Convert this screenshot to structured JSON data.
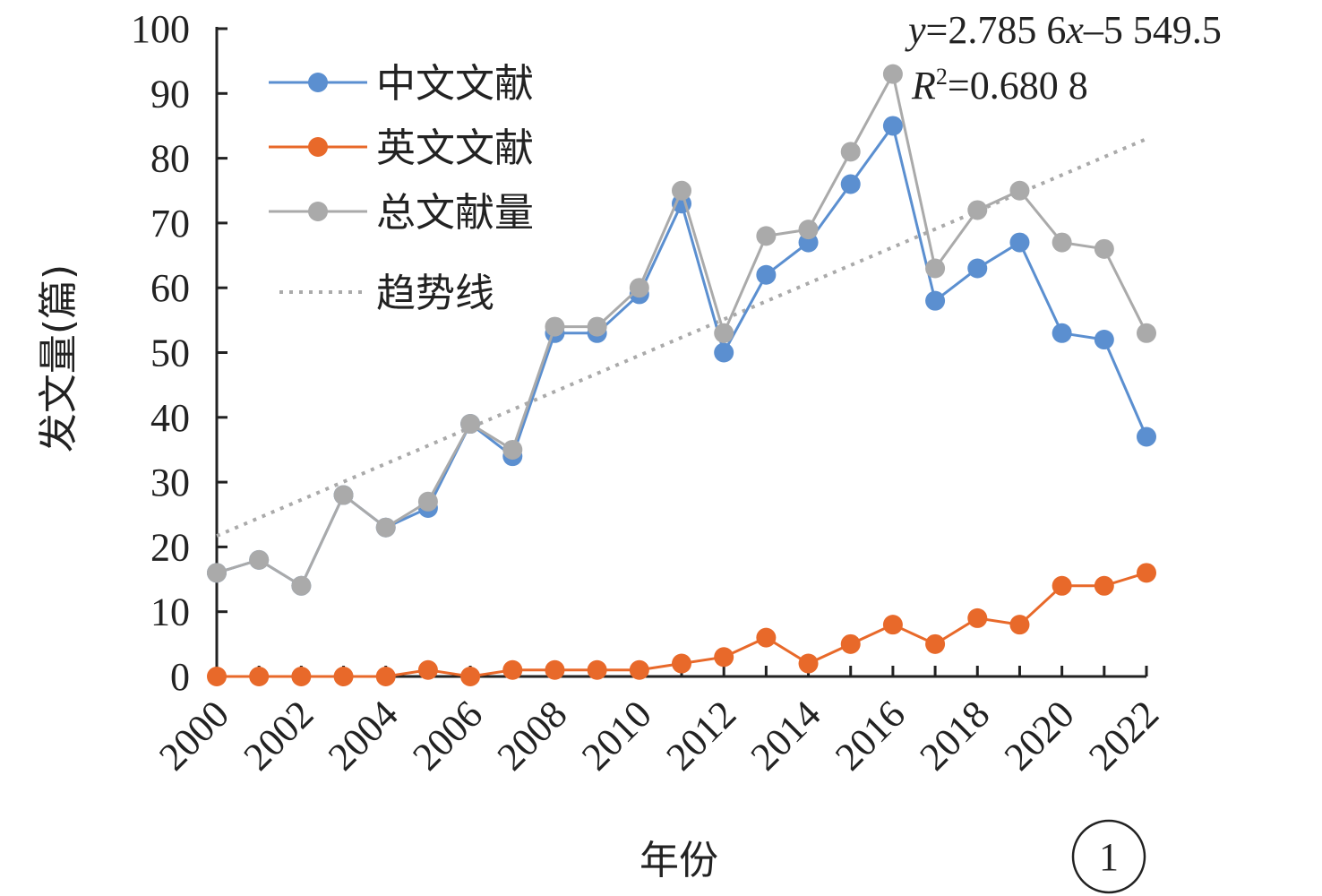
{
  "chart_data": {
    "type": "line",
    "xlabel": "年份",
    "ylabel": "发文量(篇)",
    "x": [
      2000,
      2001,
      2002,
      2003,
      2004,
      2005,
      2006,
      2007,
      2008,
      2009,
      2010,
      2011,
      2012,
      2013,
      2014,
      2015,
      2016,
      2017,
      2018,
      2019,
      2020,
      2021,
      2022
    ],
    "x_tick_labels": [
      "2000",
      "2002",
      "2004",
      "2006",
      "2008",
      "2010",
      "2012",
      "2014",
      "2016",
      "2018",
      "2020",
      "2022"
    ],
    "ylim": [
      0,
      100
    ],
    "y_ticks": [
      0,
      10,
      20,
      30,
      40,
      50,
      60,
      70,
      80,
      90,
      100
    ],
    "grid": false,
    "legend_position": "top-left",
    "series": [
      {
        "name": "中文文献",
        "color": "#5b8fd0",
        "values": [
          16,
          18,
          14,
          28,
          23,
          26,
          39,
          34,
          53,
          53,
          59,
          73,
          50,
          62,
          67,
          76,
          85,
          58,
          63,
          67,
          53,
          52,
          37
        ]
      },
      {
        "name": "英文文献",
        "color": "#e8692a",
        "values": [
          0,
          0,
          0,
          0,
          0,
          1,
          0,
          1,
          1,
          1,
          1,
          2,
          3,
          6,
          2,
          5,
          8,
          5,
          9,
          8,
          14,
          14,
          16
        ]
      },
      {
        "name": "总文献量",
        "color": "#aaaaaa",
        "values": [
          16,
          18,
          14,
          28,
          23,
          27,
          39,
          35,
          54,
          54,
          60,
          75,
          53,
          68,
          69,
          81,
          93,
          63,
          72,
          75,
          67,
          66,
          53
        ]
      }
    ],
    "trendline": {
      "name": "趋势线",
      "color": "#aaaaaa",
      "slope": 2.7856,
      "intercept": -5549.5,
      "x_range": [
        2000,
        2022
      ],
      "equation_label": "y=2.785 6x–5 549.5",
      "r2_label": "R2=0.680 8",
      "equation_prefix": "y",
      "equation_mid": "=2.785 6",
      "equation_var": "x",
      "equation_suffix": "–5 549.5",
      "r2_prefix": "R",
      "r2_sup": "2",
      "r2_value": "=0.680 8"
    },
    "panel_label": "1"
  }
}
